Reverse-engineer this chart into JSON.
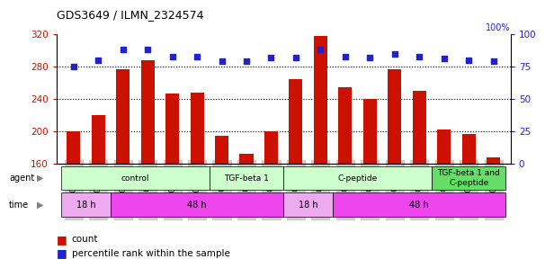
{
  "title": "GDS3649 / ILMN_2324574",
  "samples": [
    "GSM507417",
    "GSM507418",
    "GSM507419",
    "GSM507414",
    "GSM507415",
    "GSM507416",
    "GSM507420",
    "GSM507421",
    "GSM507422",
    "GSM507426",
    "GSM507427",
    "GSM507428",
    "GSM507423",
    "GSM507424",
    "GSM507425",
    "GSM507429",
    "GSM507430",
    "GSM507431"
  ],
  "counts": [
    200,
    220,
    277,
    288,
    247,
    248,
    194,
    172,
    200,
    265,
    318,
    255,
    240,
    277,
    250,
    202,
    197,
    168
  ],
  "percentiles": [
    75,
    80,
    88,
    88,
    83,
    83,
    79,
    79,
    82,
    82,
    88,
    83,
    82,
    85,
    83,
    81,
    80,
    79
  ],
  "ylim_left": [
    160,
    320
  ],
  "ylim_right": [
    0,
    100
  ],
  "yticks_left": [
    160,
    200,
    240,
    280,
    320
  ],
  "yticks_right": [
    0,
    25,
    50,
    75,
    100
  ],
  "bar_color": "#cc1100",
  "dot_color": "#2222cc",
  "grid_color": "#000000",
  "agent_groups": [
    {
      "label": "control",
      "start": 0,
      "end": 6,
      "color": "#ccffcc"
    },
    {
      "label": "TGF-beta 1",
      "start": 6,
      "end": 9,
      "color": "#ccffcc"
    },
    {
      "label": "C-peptide",
      "start": 9,
      "end": 15,
      "color": "#ccffcc"
    },
    {
      "label": "TGF-beta 1 and\nC-peptide",
      "start": 15,
      "end": 18,
      "color": "#66dd66"
    }
  ],
  "time_groups": [
    {
      "label": "18 h",
      "start": 0,
      "end": 2,
      "color": "#eeaaee"
    },
    {
      "label": "48 h",
      "start": 2,
      "end": 9,
      "color": "#ee44ee"
    },
    {
      "label": "18 h",
      "start": 9,
      "end": 11,
      "color": "#eeaaee"
    },
    {
      "label": "48 h",
      "start": 11,
      "end": 18,
      "color": "#ee44ee"
    }
  ],
  "legend_count_color": "#cc1100",
  "legend_dot_color": "#2222cc",
  "bg_color": "#ffffff",
  "tick_bg_color": "#cccccc",
  "label_fontsize": 6.5,
  "tick_fontsize": 7.5
}
